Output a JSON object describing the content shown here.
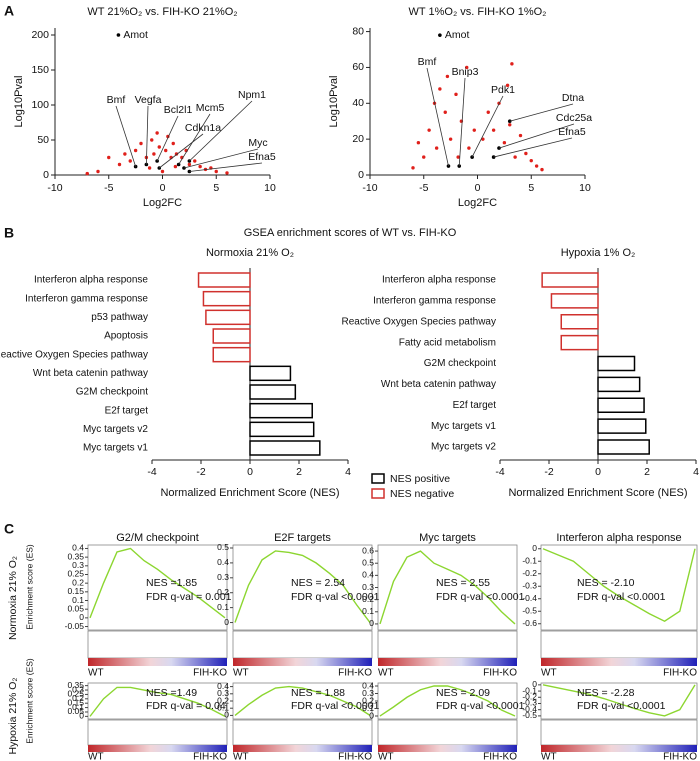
{
  "panel_labels": [
    "A",
    "B",
    "C"
  ],
  "panel_b": {
    "title": "GSEA enrichment scores of WT vs. FIH-KO",
    "legend": [
      {
        "name": "NES positive",
        "color": "#000000"
      },
      {
        "name": "NES negative",
        "color": "#d0312d"
      }
    ]
  },
  "panel_c": {
    "row_labels": [
      "Normoxia 21% O₂",
      "Hypoxia 21% O₂"
    ],
    "ylabel": "Enrichment score (ES)"
  },
  "chart_data": [
    {
      "type": "scatter",
      "title": "WT 21%O₂ vs. FIH-KO 21%O₂",
      "xlabel": "Log2FC",
      "ylabel": "Log10Pval",
      "xlim": [
        -10,
        10
      ],
      "ylim": [
        0,
        210
      ],
      "xticks": [
        -10,
        -5,
        0,
        5,
        10
      ],
      "yticks": [
        0,
        50,
        100,
        150,
        200
      ],
      "color": "#e0201b",
      "points": {
        "x": [
          -5,
          -4,
          -3.5,
          -3,
          -2.5,
          -2,
          -1.5,
          -1,
          -0.8,
          -0.5,
          -0.3,
          0.3,
          0.5,
          0.8,
          1,
          1.3,
          1.8,
          2.2,
          2.5,
          3,
          3.5,
          4,
          4.5,
          5,
          6,
          -6,
          -7,
          -1.2,
          1.2,
          0
        ],
        "y": [
          25,
          15,
          30,
          20,
          35,
          45,
          25,
          50,
          30,
          60,
          40,
          35,
          55,
          25,
          45,
          30,
          25,
          35,
          15,
          20,
          12,
          8,
          10,
          5,
          3,
          5,
          2,
          10,
          12,
          5
        ]
      },
      "genes": [
        {
          "name": "Amot",
          "x": -4.1,
          "y": 200,
          "color": "#000000"
        },
        {
          "name": "Bmf",
          "x": -2.5,
          "y": 12,
          "color": "#4a90c8"
        },
        {
          "name": "Vegfa",
          "x": -1.5,
          "y": 15,
          "color": "#e69a2e"
        },
        {
          "name": "Bcl2l1",
          "x": -0.5,
          "y": 20,
          "color": "#4a90c8"
        },
        {
          "name": "Cdkn1a",
          "x": -0.3,
          "y": 10,
          "color": "#4a90c8"
        },
        {
          "name": "Mcm5",
          "x": 1.5,
          "y": 15,
          "color": "#7b3f9e"
        },
        {
          "name": "Npm1",
          "x": 2.5,
          "y": 20,
          "color": "#e69a2e"
        },
        {
          "name": "Myc",
          "x": 2,
          "y": 10,
          "color": "#7b3f9e"
        },
        {
          "name": "Efna5",
          "x": 2.5,
          "y": 5,
          "color": "#7b3f9e"
        }
      ]
    },
    {
      "type": "scatter",
      "title": "WT 1%O₂ vs. FIH-KO 1%O₂",
      "xlabel": "Log2FC",
      "ylabel": "Log10Pval",
      "xlim": [
        -10,
        10
      ],
      "ylim": [
        0,
        82
      ],
      "xticks": [
        -10,
        -5,
        0,
        5,
        10
      ],
      "yticks": [
        0,
        20,
        40,
        60,
        80
      ],
      "color": "#e0201b",
      "points": {
        "x": [
          -5,
          -4.5,
          -4,
          -3.8,
          -3,
          -2.8,
          -2.5,
          -2,
          -1.5,
          -1,
          -0.8,
          -0.3,
          0.5,
          1,
          1.5,
          2,
          2.5,
          3,
          3.2,
          3.5,
          4,
          4.5,
          5,
          5.5,
          6,
          -6,
          -5.5,
          -3.5,
          2.8,
          -1.8
        ],
        "y": [
          10,
          25,
          40,
          15,
          35,
          55,
          20,
          45,
          30,
          60,
          15,
          25,
          20,
          35,
          25,
          40,
          18,
          28,
          62,
          10,
          22,
          12,
          8,
          5,
          3,
          4,
          18,
          48,
          50,
          10
        ]
      },
      "genes": [
        {
          "name": "Amot",
          "x": -3.5,
          "y": 78,
          "color": "#000000"
        },
        {
          "name": "Bmf",
          "x": -2.7,
          "y": 5,
          "color": "#4a90c8"
        },
        {
          "name": "Bnip3",
          "x": -1.7,
          "y": 5,
          "color": "#e69a2e"
        },
        {
          "name": "Pdk1",
          "x": -0.5,
          "y": 10,
          "color": "#e69a2e"
        },
        {
          "name": "Dtna",
          "x": 3,
          "y": 30,
          "color": "#e69a2e"
        },
        {
          "name": "Cdc25a",
          "x": 2,
          "y": 15,
          "color": "#7b3f9e"
        },
        {
          "name": "Efna5",
          "x": 1.5,
          "y": 10,
          "color": "#7b3f9e"
        }
      ]
    },
    {
      "type": "bar",
      "title": "Normoxia 21% O₂",
      "xlabel": "Normalized Enrichment Score (NES)",
      "categories": [
        "Interferon alpha response",
        "Interferon gamma response",
        "p53 pathway",
        "Apoptosis",
        "Reactive Oxygen Species pathway",
        "Wnt beta catenin pathway",
        "G2M checkpoint",
        "E2f target",
        "Myc targets v2",
        "Myc targets v1"
      ],
      "values": [
        -2.1,
        -1.9,
        -1.8,
        -1.5,
        -1.5,
        1.65,
        1.85,
        2.54,
        2.6,
        2.85
      ],
      "xlim": [
        -4,
        4
      ],
      "xticks": [
        -4,
        -2,
        0,
        2,
        4
      ]
    },
    {
      "type": "bar",
      "title": "Hypoxia 1% O₂",
      "xlabel": "Normalized Enrichment Score (NES)",
      "categories": [
        "Interferon alpha response",
        "Interferon gamma response",
        "Reactive Oxygen Species pathway",
        "Fatty acid metabolism",
        "G2M checkpoint",
        "Wnt beta catenin pathway",
        "E2f target",
        "Myc targets v1",
        "Myc targets v2"
      ],
      "values": [
        -2.28,
        -1.9,
        -1.5,
        -1.5,
        1.49,
        1.7,
        1.88,
        1.95,
        2.09
      ],
      "xlim": [
        -4,
        4
      ],
      "xticks": [
        -4,
        -2,
        0,
        2,
        4
      ]
    },
    {
      "type": "line",
      "title": "G2/M checkpoint",
      "annotations": [
        "NES =1.85",
        "FDR q-val = 0.001"
      ],
      "x_labels": [
        "WT",
        "FIH-KO"
      ],
      "color": "#8cd630",
      "values": [
        0,
        0.2,
        0.38,
        0.4,
        0.33,
        0.28,
        0.22,
        0.17,
        0.12,
        0.06,
        0
      ],
      "ylim": [
        -0.07,
        0.42
      ],
      "yticks": [
        0.4,
        0.35,
        0.3,
        0.25,
        0.2,
        0.15,
        0.1,
        0.05,
        0,
        -0.05
      ]
    },
    {
      "type": "line",
      "title": "E2F targets",
      "annotations": [
        "NES = 2.54",
        "FDR q-val <0.0001"
      ],
      "x_labels": [
        "WT",
        "FIH-KO"
      ],
      "color": "#8cd630",
      "values": [
        0,
        0.25,
        0.42,
        0.48,
        0.47,
        0.45,
        0.4,
        0.33,
        0.25,
        0.12,
        0
      ],
      "ylim": [
        -0.05,
        0.52
      ],
      "yticks": [
        0.5,
        0.4,
        0.3,
        0.2,
        0.1,
        0
      ]
    },
    {
      "type": "line",
      "title": "Myc targets",
      "annotations": [
        "NES = 2.55",
        "FDR q-val <0.0001"
      ],
      "x_labels": [
        "WT",
        "FIH-KO"
      ],
      "color": "#8cd630",
      "values": [
        0,
        0.35,
        0.55,
        0.6,
        0.5,
        0.45,
        0.4,
        0.32,
        0.22,
        0.1,
        0
      ],
      "ylim": [
        -0.05,
        0.65
      ],
      "yticks": [
        0.6,
        0.5,
        0.4,
        0.3,
        0.2,
        0.1,
        0
      ]
    },
    {
      "type": "line",
      "title": "Interferon alpha response",
      "annotations": [
        "NES = -2.10",
        "FDR q-val <0.0001"
      ],
      "x_labels": [
        "WT",
        "FIH-KO"
      ],
      "color": "#8cd630",
      "values": [
        0,
        -0.05,
        -0.1,
        -0.2,
        -0.3,
        -0.38,
        -0.45,
        -0.52,
        -0.58,
        -0.5,
        0
      ],
      "ylim": [
        -0.65,
        0.03
      ],
      "yticks": [
        0,
        -0.1,
        -0.2,
        -0.3,
        -0.4,
        -0.5,
        -0.6
      ]
    },
    {
      "type": "line",
      "annotations": [
        "NES =1.49",
        "FDR q-val = 0.04"
      ],
      "x_labels": [
        "WT",
        "FIH-KO"
      ],
      "color": "#8cd630",
      "values": [
        0,
        0.2,
        0.33,
        0.33,
        0.3,
        0.27,
        0.25,
        0.2,
        0.15,
        0.08,
        0
      ],
      "ylim": [
        -0.03,
        0.38
      ],
      "yticks": [
        0.35,
        0.3,
        0.25,
        0.2,
        0.15,
        0.1,
        0.05,
        0
      ]
    },
    {
      "type": "line",
      "annotations": [
        "NES = 1.88",
        "FDR q-val <0.0001"
      ],
      "x_labels": [
        "WT",
        "FIH-KO"
      ],
      "color": "#8cd630",
      "values": [
        0,
        0.15,
        0.28,
        0.38,
        0.4,
        0.38,
        0.33,
        0.28,
        0.2,
        0.12,
        0
      ],
      "ylim": [
        -0.05,
        0.45
      ],
      "yticks": [
        0.4,
        0.3,
        0.2,
        0.1,
        0
      ]
    },
    {
      "type": "line",
      "annotations": [
        "NES = 2.09",
        "FDR q-val <0.0001"
      ],
      "x_labels": [
        "WT",
        "FIH-KO"
      ],
      "color": "#8cd630",
      "values": [
        0,
        0.12,
        0.25,
        0.35,
        0.4,
        0.4,
        0.35,
        0.28,
        0.2,
        0.08,
        0
      ],
      "ylim": [
        -0.04,
        0.44
      ],
      "yticks": [
        0.4,
        0.3,
        0.2,
        0.1,
        0
      ]
    },
    {
      "type": "line",
      "annotations": [
        "NES = -2.28",
        "FDR q-val <0.0001"
      ],
      "x_labels": [
        "WT",
        "FIH-KO"
      ],
      "color": "#8cd630",
      "values": [
        0,
        -0.05,
        -0.1,
        -0.15,
        -0.22,
        -0.3,
        -0.38,
        -0.45,
        -0.5,
        -0.4,
        0
      ],
      "ylim": [
        -0.55,
        0.03
      ],
      "yticks": [
        0,
        -0.1,
        -0.2,
        -0.3,
        -0.4,
        -0.5
      ]
    }
  ]
}
